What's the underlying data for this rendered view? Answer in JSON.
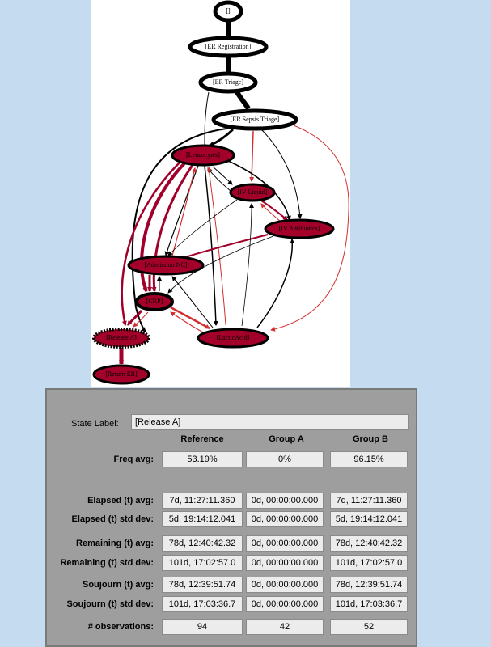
{
  "graph": {
    "nodes": [
      {
        "id": "start",
        "label": "[]"
      },
      {
        "id": "er_reg",
        "label": "[ER Registration]"
      },
      {
        "id": "er_triage",
        "label": "[ER Triage]"
      },
      {
        "id": "er_sepsis",
        "label": "[ER Sepsis Triage]"
      },
      {
        "id": "leuco",
        "label": "[Leucocytes]"
      },
      {
        "id": "iv_liquid",
        "label": "[IV Liquid]"
      },
      {
        "id": "iv_anti",
        "label": "[IV Antibiotics]"
      },
      {
        "id": "admission",
        "label": "[Admission NC]"
      },
      {
        "id": "crp",
        "label": "[CRP]"
      },
      {
        "id": "release_a",
        "label": "[Release A]"
      },
      {
        "id": "lactic",
        "label": "[LacticAcid]"
      },
      {
        "id": "return_er",
        "label": "[Return ER]"
      }
    ],
    "colors": {
      "fill": "#a3002a",
      "edge_dark": "#000000",
      "edge_red": "#d42f2f",
      "edge_maroon": "#a0002a"
    }
  },
  "stats": {
    "state_label_caption": "State Label:",
    "state_label_value": "[Release A]",
    "columns": [
      "Reference",
      "Group A",
      "Group B"
    ],
    "rows": [
      {
        "label": "Freq avg:",
        "values": [
          "53.19%",
          "0%",
          "96.15%"
        ]
      },
      {
        "label": "Elapsed (t) avg:",
        "values": [
          "7d, 11:27:11.360",
          "0d, 00:00:00.000",
          "7d, 11:27:11.360"
        ]
      },
      {
        "label": "Elapsed (t) std dev:",
        "values": [
          "5d, 19:14:12.041",
          "0d, 00:00:00.000",
          "5d, 19:14:12.041"
        ]
      },
      {
        "label": "Remaining (t) avg:",
        "values": [
          "78d, 12:40:42.32",
          "0d, 00:00:00.000",
          "78d, 12:40:42.32"
        ]
      },
      {
        "label": "Remaining (t) std dev:",
        "values": [
          "101d, 17:02:57.0",
          "0d, 00:00:00.000",
          "101d, 17:02:57.0"
        ]
      },
      {
        "label": "Soujourn (t) avg:",
        "values": [
          "78d, 12:39:51.74",
          "0d, 00:00:00.000",
          "78d, 12:39:51.74"
        ]
      },
      {
        "label": "Soujourn (t) std dev:",
        "values": [
          "101d, 17:03:36.7",
          "0d, 00:00:00.000",
          "101d, 17:03:36.7"
        ]
      },
      {
        "label": "# observations:",
        "values": [
          "94",
          "42",
          "52"
        ]
      }
    ]
  }
}
